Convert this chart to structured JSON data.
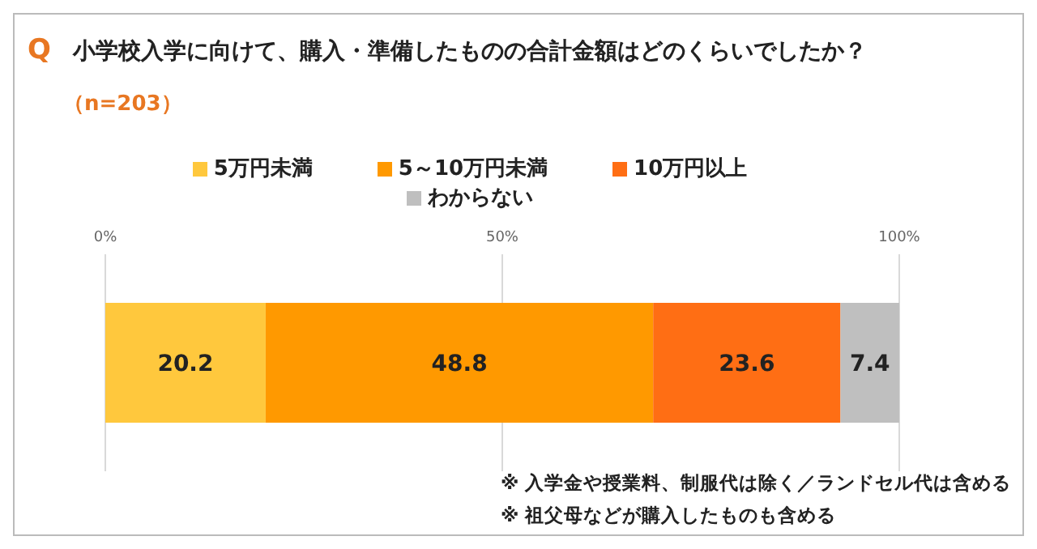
{
  "chart_data": {
    "type": "bar",
    "orientation": "horizontal",
    "stacked": true,
    "title": "小学校入学に向けて、購入・準備したものの合計金額はどのくらいでしたか？",
    "subtitle": "（n=203）",
    "categories": [
      null
    ],
    "series": [
      {
        "name": "5万円未満",
        "color": "#ffc83d",
        "values": [
          20.2
        ]
      },
      {
        "name": "5～10万円未満",
        "color": "#ff9900",
        "values": [
          48.8
        ]
      },
      {
        "name": "10万円以上",
        "color": "#ff6e14",
        "values": [
          23.6
        ]
      },
      {
        "name": "わからない",
        "color": "#bfbfbf",
        "values": [
          7.4
        ]
      }
    ],
    "xlim": [
      0,
      100
    ],
    "xticks": [
      {
        "value": 0,
        "label": "0%"
      },
      {
        "value": 50,
        "label": "50%"
      },
      {
        "value": 100,
        "label": "100%"
      }
    ],
    "grid": "x",
    "legend": "top",
    "data_labels": true,
    "annotations": [
      "Q",
      "※ 入学金や授業料、制服代は除く／ランドセル代は含める",
      "※ 祖父母などが購入したものも含める"
    ]
  }
}
